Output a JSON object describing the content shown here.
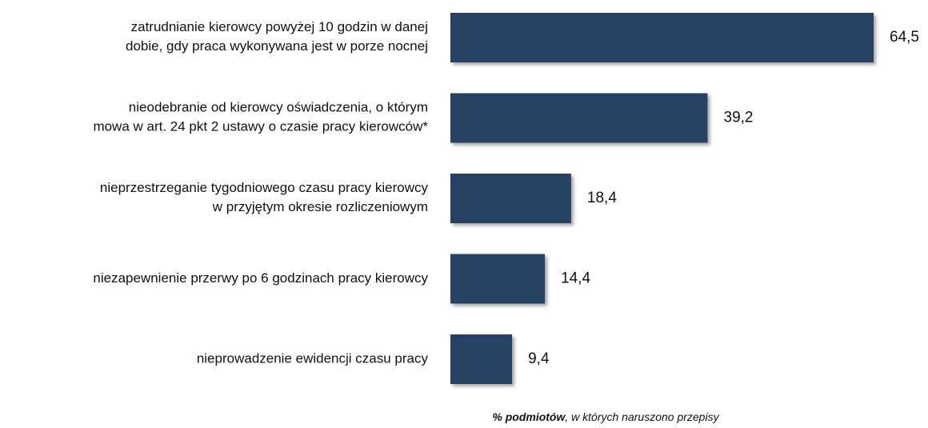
{
  "chart_data": {
    "type": "barh",
    "categories": [
      "zatrudnianie kierowcy powyżej 10 godzin w danej\ndobie, gdy praca wykonywana jest w porze nocnej",
      "nieodebranie od kierowcy oświadczenia, o którym\nmowa w art. 24 pkt 2 ustawy o czasie pracy kierowców*",
      "nieprzestrzeganie tygodniowego czasu pracy kierowcy\nw przyjętym okresie rozliczeniowym",
      "niezapewnienie przerwy po 6 godzinach pracy kierowcy",
      "nieprowadzenie ewidencji czasu pracy"
    ],
    "values": [
      64.5,
      39.2,
      18.4,
      14.4,
      9.4
    ],
    "value_labels": [
      "64,5",
      "39,2",
      "18,4",
      "14,4",
      "9,4"
    ],
    "color": "#264363",
    "xlabel_bold": "% podmiotów",
    "xlabel": ", w których naruszono przepisy"
  }
}
